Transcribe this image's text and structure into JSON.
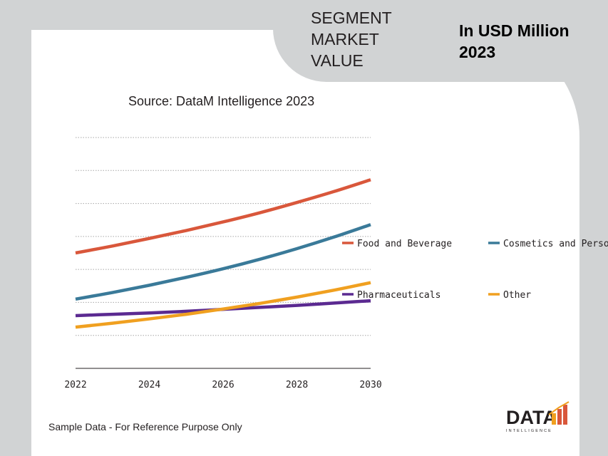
{
  "header": {
    "segment_title": "SEGMENT MARKET VALUE",
    "unit_title": "In USD Million 2023"
  },
  "source": "Source: DataM Intelligence 2023",
  "footnote": "Sample Data - For Reference Purpose Only",
  "logo": {
    "word": "DATA",
    "subword": "INTELLIGENCE",
    "icon": "bar-chart-icon"
  },
  "colors": {
    "background": "#d1d3d4",
    "card": "#ffffff",
    "grid": "#a6a6a6",
    "axis": "#231f20"
  },
  "chart_data": {
    "type": "line",
    "x": [
      2022,
      2023,
      2024,
      2025,
      2026,
      2027,
      2028,
      2029,
      2030
    ],
    "xticks": [
      "2022",
      "2024",
      "2026",
      "2028",
      "2030"
    ],
    "ylim": [
      0,
      7
    ],
    "grid": true,
    "legend_position": "right",
    "series": [
      {
        "name": "Food and Beverage",
        "color": "#d9573b",
        "values": [
          3.5,
          3.71,
          3.94,
          4.18,
          4.44,
          4.72,
          5.03,
          5.36,
          5.72
        ]
      },
      {
        "name": "Cosmetics and Personal Care",
        "color": "#3a7a99",
        "values": [
          2.1,
          2.3,
          2.52,
          2.76,
          3.02,
          3.31,
          3.63,
          3.98,
          4.36
        ]
      },
      {
        "name": "Pharmaceuticals",
        "color": "#5b2a91",
        "values": [
          1.6,
          1.64,
          1.68,
          1.73,
          1.79,
          1.85,
          1.91,
          1.98,
          2.05
        ]
      },
      {
        "name": "Other",
        "color": "#f0a020",
        "values": [
          1.25,
          1.37,
          1.5,
          1.64,
          1.8,
          1.97,
          2.16,
          2.37,
          2.6
        ]
      }
    ]
  }
}
